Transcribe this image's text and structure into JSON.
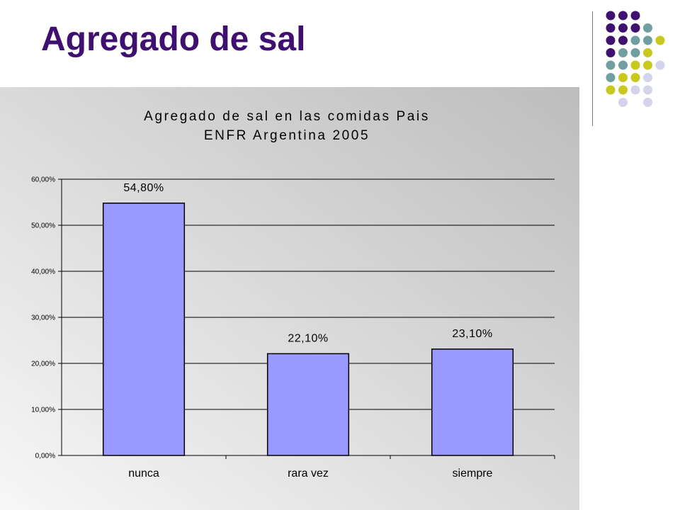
{
  "slide": {
    "title": "Agregado de sal"
  },
  "colors": {
    "title": "#3f1070",
    "bar_fill": "#9999ff",
    "dot_purple": "#3f1070",
    "dot_teal": "#6f9fa0",
    "dot_yellow": "#c8c81e",
    "dot_lavender": "#d3d3ea"
  },
  "decoration": {
    "dot_grid": [
      [
        "purple",
        "purple",
        "purple",
        "",
        "",
        ""
      ],
      [
        "purple",
        "purple",
        "purple",
        "teal",
        "",
        ""
      ],
      [
        "purple",
        "purple",
        "teal",
        "teal",
        "yellow",
        ""
      ],
      [
        "purple",
        "teal",
        "teal",
        "yellow",
        "",
        ""
      ],
      [
        "teal",
        "teal",
        "yellow",
        "yellow",
        "lavender",
        ""
      ],
      [
        "teal",
        "yellow",
        "yellow",
        "lavender",
        "",
        ""
      ],
      [
        "yellow",
        "yellow",
        "lavender",
        "lavender",
        "",
        ""
      ],
      [
        "",
        "lavender",
        "",
        "lavender",
        "",
        ""
      ]
    ]
  },
  "chart_data": {
    "type": "bar",
    "title_lines": [
      "Agregado de sal en las comidas Pais",
      "ENFR Argentina 2005"
    ],
    "categories": [
      "nunca",
      "rara vez",
      "siempre"
    ],
    "values": [
      54.8,
      22.1,
      23.1
    ],
    "data_labels": [
      "54,80%",
      "22,10%",
      "23,10%"
    ],
    "ylim": [
      0,
      60
    ],
    "yticks": [
      0,
      10,
      20,
      30,
      40,
      50,
      60
    ],
    "ytick_labels": [
      "0,00%",
      "10,00%",
      "20,00%",
      "30,00%",
      "40,00%",
      "50,00%",
      "60,00%"
    ],
    "grid": true,
    "legend": "none"
  }
}
